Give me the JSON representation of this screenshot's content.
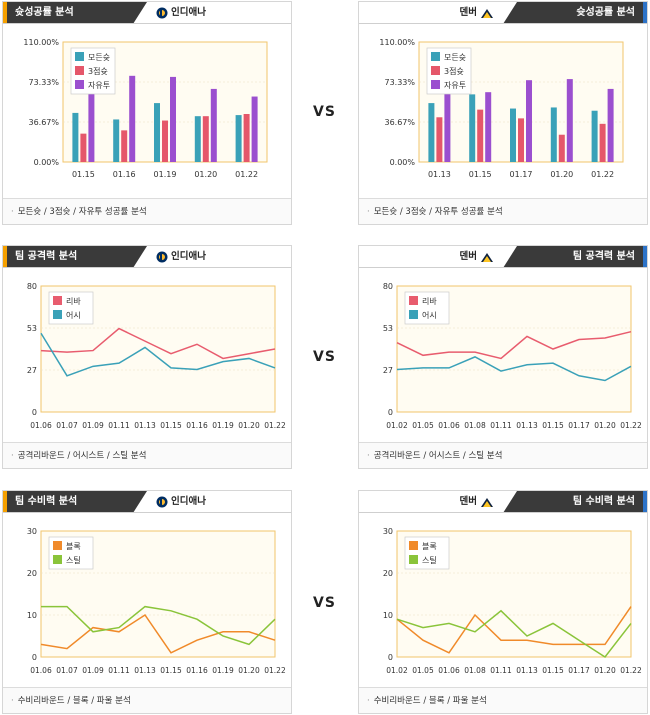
{
  "vs_label": "VS",
  "teams": {
    "home": "인디애나",
    "away": "덴버"
  },
  "colors": {
    "fg": "#3aa1b8",
    "three": "#e5576a",
    "ft": "#9b4fcf",
    "reb": "#e85c6e",
    "ast": "#3aa1b8",
    "blk": "#f08a2a",
    "stl": "#8ac43a",
    "plot_bg": "#fffcf2",
    "plot_border": "#f2c56b",
    "hdr_home": "#f5a000",
    "hdr_away": "#2d73c8"
  },
  "sections": {
    "shooting": {
      "title": "슛성공률 분석",
      "footer": "모든슛 / 3점슛 / 자유투 성공률 분석"
    },
    "offense": {
      "title": "팀 공격력 분석",
      "footer": "공격리바운드 / 어시스트 / 스틸 분석"
    },
    "defense": {
      "title": "팀 수비력 분석",
      "footer": "수비리바운드 / 블록 / 파울 분석"
    }
  },
  "chart_data": [
    {
      "id": "shoot-home",
      "type": "bar",
      "categories": [
        "01.15",
        "01.16",
        "01.19",
        "01.20",
        "01.22"
      ],
      "yticks": [
        "0.00%",
        "36.67%",
        "73.33%",
        "110.00%"
      ],
      "ylim": [
        0,
        110
      ],
      "legend_placement": "top-left",
      "series": [
        {
          "name": "모든슛",
          "color_key": "fg",
          "values": [
            45,
            39,
            54,
            42,
            43
          ]
        },
        {
          "name": "3점슛",
          "color_key": "three",
          "values": [
            26,
            29,
            38,
            42,
            44
          ]
        },
        {
          "name": "자유투",
          "color_key": "ft",
          "values": [
            83,
            79,
            78,
            67,
            60
          ]
        }
      ]
    },
    {
      "id": "shoot-away",
      "type": "bar",
      "categories": [
        "01.13",
        "01.15",
        "01.17",
        "01.20",
        "01.22"
      ],
      "yticks": [
        "0.00%",
        "36.67%",
        "73.33%",
        "110.00%"
      ],
      "ylim": [
        0,
        110
      ],
      "legend_placement": "top-left",
      "series": [
        {
          "name": "모든슛",
          "color_key": "fg",
          "values": [
            54,
            62,
            49,
            50,
            47
          ]
        },
        {
          "name": "3점슛",
          "color_key": "three",
          "values": [
            41,
            48,
            40,
            25,
            35
          ]
        },
        {
          "name": "자유투",
          "color_key": "ft",
          "values": [
            67,
            64,
            75,
            76,
            67
          ]
        }
      ]
    },
    {
      "id": "off-home",
      "type": "line",
      "categories": [
        "01.06",
        "01.07",
        "01.09",
        "01.11",
        "01.13",
        "01.15",
        "01.16",
        "01.19",
        "01.20",
        "01.22"
      ],
      "yticks": [
        "0",
        "27",
        "53",
        "80"
      ],
      "ylim": [
        0,
        80
      ],
      "legend_placement": "top-left",
      "series": [
        {
          "name": "리바",
          "color_key": "reb",
          "values": [
            39,
            38,
            39,
            53,
            45,
            37,
            43,
            34,
            37,
            40
          ]
        },
        {
          "name": "어시",
          "color_key": "ast",
          "values": [
            50,
            23,
            29,
            31,
            41,
            28,
            27,
            32,
            34,
            28
          ]
        }
      ]
    },
    {
      "id": "off-away",
      "type": "line",
      "categories": [
        "01.02",
        "01.05",
        "01.06",
        "01.08",
        "01.11",
        "01.13",
        "01.15",
        "01.17",
        "01.20",
        "01.22"
      ],
      "yticks": [
        "0",
        "27",
        "53",
        "80"
      ],
      "ylim": [
        0,
        80
      ],
      "legend_placement": "top-left",
      "series": [
        {
          "name": "리바",
          "color_key": "reb",
          "values": [
            44,
            36,
            38,
            38,
            34,
            48,
            40,
            46,
            47,
            51
          ]
        },
        {
          "name": "어시",
          "color_key": "ast",
          "values": [
            27,
            28,
            28,
            35,
            26,
            30,
            31,
            23,
            20,
            29
          ]
        }
      ]
    },
    {
      "id": "def-home",
      "type": "line",
      "categories": [
        "01.06",
        "01.07",
        "01.09",
        "01.11",
        "01.13",
        "01.15",
        "01.16",
        "01.19",
        "01.20",
        "01.22"
      ],
      "yticks": [
        "0",
        "10",
        "20",
        "30"
      ],
      "ylim": [
        0,
        30
      ],
      "legend_placement": "top-left",
      "series": [
        {
          "name": "블록",
          "color_key": "blk",
          "values": [
            3,
            2,
            7,
            6,
            10,
            1,
            4,
            6,
            6,
            4
          ]
        },
        {
          "name": "스틸",
          "color_key": "stl",
          "values": [
            12,
            12,
            6,
            7,
            12,
            11,
            9,
            5,
            3,
            9
          ]
        }
      ]
    },
    {
      "id": "def-away",
      "type": "line",
      "categories": [
        "01.02",
        "01.05",
        "01.06",
        "01.08",
        "01.11",
        "01.13",
        "01.15",
        "01.17",
        "01.20",
        "01.22"
      ],
      "yticks": [
        "0",
        "10",
        "20",
        "30"
      ],
      "ylim": [
        0,
        30
      ],
      "legend_placement": "top-left",
      "series": [
        {
          "name": "블록",
          "color_key": "blk",
          "values": [
            9,
            4,
            1,
            10,
            4,
            4,
            3,
            3,
            3,
            12
          ]
        },
        {
          "name": "스틸",
          "color_key": "stl",
          "values": [
            9,
            7,
            8,
            6,
            11,
            5,
            8,
            4,
            0,
            8
          ]
        }
      ]
    }
  ]
}
